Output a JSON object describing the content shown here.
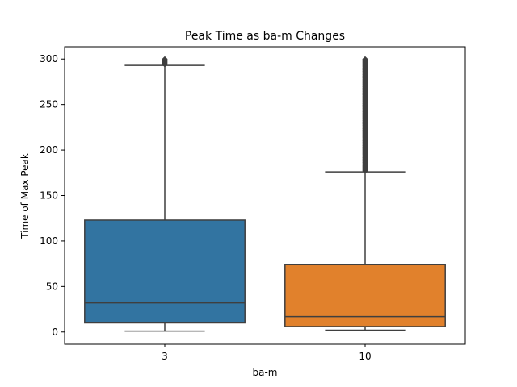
{
  "chart_data": {
    "type": "box",
    "title": "Peak Time as ba-m Changes",
    "xlabel": "ba-m",
    "ylabel": "Time of Max Peak",
    "ylim": [
      -13.5,
      313.5
    ],
    "yticks": [
      0,
      50,
      100,
      150,
      200,
      250,
      300
    ],
    "categories": [
      "3",
      "10"
    ],
    "boxes": [
      {
        "category": "3",
        "whisker_low": 1,
        "q1": 10,
        "median": 32,
        "q3": 123,
        "whisker_high": 293,
        "outlier_min": 294,
        "outlier_max": 300,
        "color": "#3274a1"
      },
      {
        "category": "10",
        "whisker_low": 2,
        "q1": 6,
        "median": 17,
        "q3": 74,
        "whisker_high": 176,
        "outlier_min": 177,
        "outlier_max": 300,
        "color": "#e1812c"
      }
    ],
    "grid": false,
    "legend": "none"
  }
}
